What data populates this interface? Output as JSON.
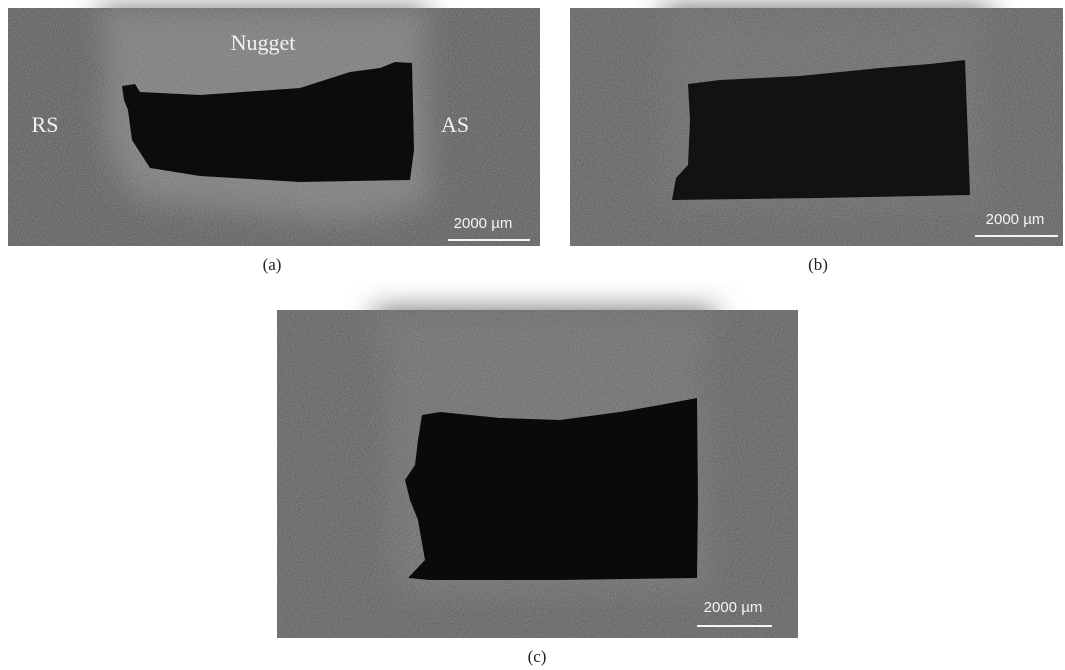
{
  "panels": [
    {
      "caption": "(a)",
      "labels": {
        "nugget": "Nugget",
        "rs": "RS",
        "as": "AS"
      },
      "scale_bar": "2000 µm"
    },
    {
      "caption": "(b)",
      "scale_bar": "2000 µm"
    },
    {
      "caption": "(c)",
      "scale_bar": "2000 µm"
    }
  ]
}
